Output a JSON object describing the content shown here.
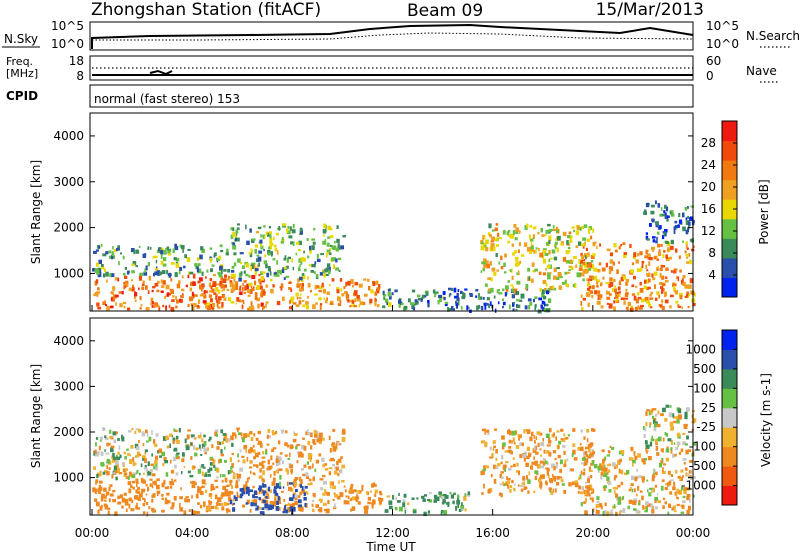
{
  "header": {
    "station": "Zhongshan Station (fitACF)",
    "beam": "Beam 09",
    "date": "15/Mar/2013"
  },
  "panels": {
    "nsky": {
      "left_label": "N.Sky",
      "left_ticks": [
        "10^5",
        "10^0"
      ],
      "right_ticks": [
        "10^5",
        "10^0"
      ],
      "right_label": "N.Search"
    },
    "freq": {
      "left_label_1": "Freq.",
      "left_label_2": "[MHz]",
      "left_ticks": [
        "18",
        "8"
      ],
      "right_ticks": [
        "60",
        "0"
      ],
      "right_label": "Nave"
    },
    "cpid": {
      "label": "CPID",
      "text": "normal (fast stereo) 153"
    }
  },
  "colors": {
    "power_scale": [
      "#0022ee",
      "#2a4faa",
      "#3b8a5a",
      "#66c044",
      "#e8d800",
      "#f0a020",
      "#f07a10",
      "#f04a0a",
      "#ee1a10"
    ],
    "velocity_scale": [
      "#ee1a10",
      "#f05a10",
      "#f08820",
      "#f0b030",
      "#c8c8c8",
      "#66c044",
      "#3b8a5a",
      "#2a4faa",
      "#0022ee"
    ]
  },
  "chart_data": [
    {
      "type": "heatmap",
      "name": "power",
      "ylabel": "Slant Range [km]",
      "ylim": [
        180,
        4500
      ],
      "yticks": [
        1000,
        2000,
        3000,
        4000
      ],
      "xlim": [
        "00:00",
        "24:00"
      ],
      "colorbar": {
        "label": "Power [dB]",
        "range": [
          0,
          32
        ],
        "ticks": [
          4,
          8,
          12,
          16,
          20,
          24,
          28
        ]
      },
      "regions": [
        {
          "t": [
            0.0,
            6.8
          ],
          "r": [
            250,
            1000
          ],
          "db": 24
        },
        {
          "t": [
            0.0,
            5.4
          ],
          "r": [
            1000,
            1650
          ],
          "db": 10
        },
        {
          "t": [
            4.5,
            11.5
          ],
          "r": [
            280,
            900
          ],
          "db": 22
        },
        {
          "t": [
            5.5,
            10.0
          ],
          "r": [
            900,
            2100
          ],
          "db": 12
        },
        {
          "t": [
            11.5,
            14.5
          ],
          "r": [
            250,
            700
          ],
          "db": 9
        },
        {
          "t": [
            14.0,
            18.5
          ],
          "r": [
            200,
            700
          ],
          "db": 7
        },
        {
          "t": [
            15.5,
            20.0
          ],
          "r": [
            650,
            2100
          ],
          "db": 16
        },
        {
          "t": [
            19.5,
            24.0
          ],
          "r": [
            250,
            1700
          ],
          "db": 22
        },
        {
          "t": [
            22.0,
            24.0
          ],
          "r": [
            1700,
            2600
          ],
          "db": 7
        }
      ]
    },
    {
      "type": "heatmap",
      "name": "velocity",
      "ylabel": "Slant Range [km]",
      "ylim": [
        180,
        4500
      ],
      "yticks": [
        1000,
        2000,
        3000,
        4000
      ],
      "xlim": [
        "00:00",
        "24:00"
      ],
      "xticks": [
        "00:00",
        "04:00",
        "08:00",
        "12:00",
        "16:00",
        "20:00",
        "00:00"
      ],
      "xlabel": "Time UT",
      "colorbar": {
        "label": "Velocity [m s-1]",
        "tick_labels": [
          "1000",
          "500",
          "100",
          "25",
          "-25",
          "-100",
          "-500",
          "-1000"
        ]
      },
      "regions": [
        {
          "t": [
            0.0,
            5.6
          ],
          "r": [
            250,
            1000
          ],
          "v": -300
        },
        {
          "t": [
            0.0,
            5.6
          ],
          "r": [
            1000,
            2100
          ],
          "v": 0
        },
        {
          "t": [
            4.5,
            11.5
          ],
          "r": [
            280,
            900
          ],
          "v": -200
        },
        {
          "t": [
            5.5,
            8.5
          ],
          "r": [
            250,
            900
          ],
          "v": 800
        },
        {
          "t": [
            5.5,
            10.0
          ],
          "r": [
            900,
            2100
          ],
          "v": -150
        },
        {
          "t": [
            11.5,
            15.0
          ],
          "r": [
            250,
            700
          ],
          "v": 150
        },
        {
          "t": [
            15.5,
            20.0
          ],
          "r": [
            650,
            2100
          ],
          "v": -150
        },
        {
          "t": [
            19.5,
            24.0
          ],
          "r": [
            250,
            1700
          ],
          "v": -100
        },
        {
          "t": [
            22.0,
            24.0
          ],
          "r": [
            1700,
            2600
          ],
          "v": 0
        }
      ]
    }
  ]
}
